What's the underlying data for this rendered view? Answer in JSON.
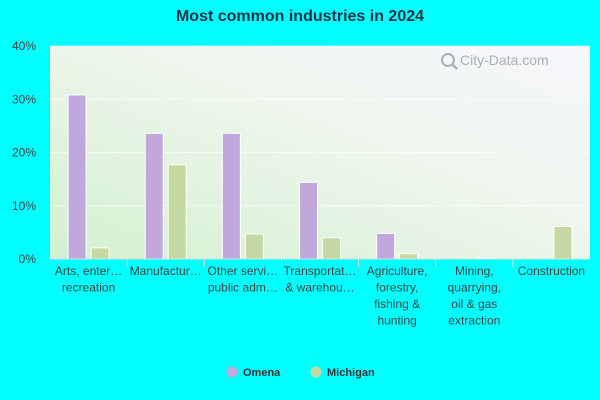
{
  "chart_data": {
    "type": "bar",
    "title": "Most common industries in 2024",
    "categories": [
      [
        "Arts, enter…",
        "recreation"
      ],
      [
        "Manufactur…"
      ],
      [
        "Other servi…",
        "public adm…"
      ],
      [
        "Transportat…",
        "& warehou…"
      ],
      [
        "Agriculture,",
        "forestry,",
        "fishing &",
        "hunting"
      ],
      [
        "Mining,",
        "quarrying,",
        "oil & gas",
        "extraction"
      ],
      [
        "Construction"
      ]
    ],
    "series": [
      {
        "name": "Omena",
        "color": "#c0a8dc",
        "values": [
          30.8,
          23.6,
          23.6,
          14.4,
          4.8,
          0,
          0
        ]
      },
      {
        "name": "Michigan",
        "color": "#c5d9a4",
        "values": [
          2.1,
          17.7,
          4.7,
          4.0,
          1.0,
          0.2,
          6.1
        ]
      }
    ],
    "ylim": [
      0,
      40
    ],
    "yticks": [
      "0%",
      "10%",
      "20%",
      "30%",
      "40%"
    ],
    "legend_position": "bottom",
    "grid": true
  },
  "watermark": "City-Data.com"
}
